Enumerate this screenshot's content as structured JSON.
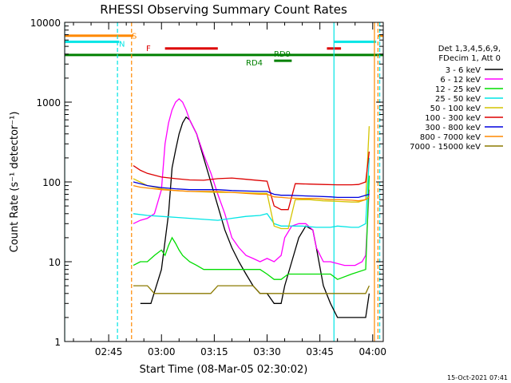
{
  "chart_data": {
    "type": "line",
    "title": "RHESSI Observing Summary Count Rates",
    "xlabel": "Start Time (08-Mar-05 02:30:02)",
    "ylabel": "Count Rate (s⁻¹ detector⁻¹)",
    "yscale": "log",
    "ylim": [
      1,
      10000
    ],
    "xlim_minutes": [
      2.5,
      93
    ],
    "x_ticks": [
      "02:45",
      "03:00",
      "03:15",
      "03:30",
      "03:45",
      "04:00"
    ],
    "x_tick_minutes": [
      15,
      30,
      45,
      60,
      75,
      90
    ],
    "y_ticks": [
      "1",
      "10",
      "100",
      "1000",
      "10000"
    ],
    "y_tick_values": [
      1,
      10,
      100,
      1000,
      10000
    ],
    "timestamp": "15-Oct-2021 07:41",
    "legend_header": [
      "Det 1,3,4,5,6,9,",
      "FDecim 1, Att 0"
    ],
    "legend": [
      {
        "label": "3 - 6 keV",
        "color": "#000000"
      },
      {
        "label": "6 - 12 keV",
        "color": "#ff00ff"
      },
      {
        "label": "12 - 25 keV",
        "color": "#00dd00"
      },
      {
        "label": "25 - 50 keV",
        "color": "#00e5e5"
      },
      {
        "label": "50 - 100 keV",
        "color": "#d4c400"
      },
      {
        "label": "100 - 300 keV",
        "color": "#dd0000"
      },
      {
        "label": "300 - 800 keV",
        "color": "#0000dd"
      },
      {
        "label": "800 - 7000 keV",
        "color": "#ff8800"
      },
      {
        "label": "7000 - 15000 keV",
        "color": "#8b7a00"
      }
    ],
    "flag_bars": [
      {
        "label": "S",
        "color": "#ff8800",
        "y": 6800,
        "segments": [
          [
            2.5,
            22
          ],
          [
            91.5,
            93
          ]
        ]
      },
      {
        "label": "N",
        "color": "#00e5e5",
        "y": 5700,
        "segments": [
          [
            2.5,
            18
          ],
          [
            79,
            91
          ]
        ]
      },
      {
        "label": "F",
        "color": "#dd0000",
        "y": 4700,
        "segments": [
          [
            31,
            46
          ],
          [
            77,
            81
          ]
        ]
      },
      {
        "label": "",
        "color": "#008000",
        "y": 3900,
        "segments": [
          [
            2.5,
            93
          ]
        ]
      },
      {
        "label": "RD9",
        "color": "#008000",
        "y": 3900,
        "segments": []
      },
      {
        "label": "RD4",
        "color": "#008000",
        "y": 3300,
        "segments": [
          [
            62,
            67
          ]
        ]
      }
    ],
    "vertical_markers": [
      {
        "minute": 2.5,
        "color": "#00e5e5",
        "style": "solid"
      },
      {
        "minute": 17.5,
        "color": "#00e5e5",
        "style": "dashed"
      },
      {
        "minute": 21.5,
        "color": "#ff8800",
        "style": "dashed"
      },
      {
        "minute": 79,
        "color": "#00e5e5",
        "style": "solid"
      },
      {
        "minute": 90.5,
        "color": "#ff8800",
        "style": "solid"
      },
      {
        "minute": 91.5,
        "color": "#ff8800",
        "style": "dashed"
      },
      {
        "minute": 92,
        "color": "#00e5e5",
        "style": "dashed"
      }
    ],
    "series": [
      {
        "color": "#000000",
        "points": [
          [
            24,
            3
          ],
          [
            27,
            3
          ],
          [
            30,
            8
          ],
          [
            32,
            40
          ],
          [
            33,
            150
          ],
          [
            34,
            250
          ],
          [
            35,
            400
          ],
          [
            36,
            550
          ],
          [
            37,
            650
          ],
          [
            38,
            600
          ],
          [
            40,
            400
          ],
          [
            42,
            200
          ],
          [
            44,
            100
          ],
          [
            46,
            50
          ],
          [
            48,
            25
          ],
          [
            50,
            15
          ],
          [
            52,
            10
          ],
          [
            54,
            7
          ],
          [
            56,
            5
          ],
          [
            58,
            4
          ],
          [
            60,
            4
          ],
          [
            62,
            3
          ],
          [
            64,
            3
          ],
          [
            65,
            5
          ],
          [
            67,
            10
          ],
          [
            69,
            20
          ],
          [
            71,
            28
          ],
          [
            73,
            25
          ],
          [
            74,
            15
          ],
          [
            76,
            5
          ],
          [
            78,
            3
          ],
          [
            80,
            2
          ],
          [
            84,
            2
          ],
          [
            88,
            2
          ],
          [
            89,
            4
          ]
        ]
      },
      {
        "color": "#ff00ff",
        "points": [
          [
            22,
            30
          ],
          [
            24,
            33
          ],
          [
            26,
            35
          ],
          [
            28,
            40
          ],
          [
            30,
            80
          ],
          [
            31,
            300
          ],
          [
            32,
            550
          ],
          [
            33,
            800
          ],
          [
            34,
            1000
          ],
          [
            35,
            1100
          ],
          [
            36,
            1000
          ],
          [
            37,
            800
          ],
          [
            38,
            600
          ],
          [
            40,
            400
          ],
          [
            42,
            220
          ],
          [
            44,
            130
          ],
          [
            46,
            70
          ],
          [
            48,
            40
          ],
          [
            50,
            20
          ],
          [
            52,
            15
          ],
          [
            54,
            12
          ],
          [
            56,
            11
          ],
          [
            58,
            10
          ],
          [
            60,
            11
          ],
          [
            62,
            10
          ],
          [
            64,
            12
          ],
          [
            65,
            20
          ],
          [
            67,
            28
          ],
          [
            69,
            30
          ],
          [
            71,
            30
          ],
          [
            73,
            25
          ],
          [
            74,
            15
          ],
          [
            76,
            10
          ],
          [
            78,
            10
          ],
          [
            82,
            9
          ],
          [
            85,
            9
          ],
          [
            87,
            10
          ],
          [
            88,
            12
          ],
          [
            89,
            80
          ]
        ]
      },
      {
        "color": "#00dd00",
        "points": [
          [
            22,
            9
          ],
          [
            24,
            10
          ],
          [
            26,
            10
          ],
          [
            28,
            12
          ],
          [
            30,
            14
          ],
          [
            31,
            12
          ],
          [
            32,
            16
          ],
          [
            33,
            20
          ],
          [
            34,
            17
          ],
          [
            35,
            14
          ],
          [
            36,
            12
          ],
          [
            38,
            10
          ],
          [
            40,
            9
          ],
          [
            42,
            8
          ],
          [
            44,
            8
          ],
          [
            46,
            8
          ],
          [
            48,
            8
          ],
          [
            50,
            8
          ],
          [
            52,
            8
          ],
          [
            54,
            8
          ],
          [
            56,
            8
          ],
          [
            58,
            8
          ],
          [
            60,
            7
          ],
          [
            62,
            6
          ],
          [
            64,
            6
          ],
          [
            66,
            7
          ],
          [
            68,
            7
          ],
          [
            70,
            7
          ],
          [
            72,
            7
          ],
          [
            74,
            7
          ],
          [
            76,
            7
          ],
          [
            78,
            7
          ],
          [
            80,
            6
          ],
          [
            84,
            7
          ],
          [
            88,
            8
          ],
          [
            89,
            120
          ]
        ]
      },
      {
        "color": "#00e5e5",
        "points": [
          [
            22,
            40
          ],
          [
            26,
            38
          ],
          [
            30,
            37
          ],
          [
            34,
            36
          ],
          [
            38,
            35
          ],
          [
            42,
            34
          ],
          [
            46,
            33
          ],
          [
            50,
            35
          ],
          [
            54,
            37
          ],
          [
            58,
            38
          ],
          [
            60,
            40
          ],
          [
            62,
            30
          ],
          [
            64,
            28
          ],
          [
            66,
            28
          ],
          [
            70,
            28
          ],
          [
            74,
            27
          ],
          [
            78,
            27
          ],
          [
            80,
            28
          ],
          [
            84,
            27
          ],
          [
            86,
            27
          ],
          [
            88,
            30
          ],
          [
            89,
            200
          ]
        ]
      },
      {
        "color": "#d4c400",
        "points": [
          [
            22,
            110
          ],
          [
            26,
            90
          ],
          [
            30,
            82
          ],
          [
            34,
            78
          ],
          [
            38,
            76
          ],
          [
            42,
            75
          ],
          [
            46,
            74
          ],
          [
            50,
            74
          ],
          [
            54,
            73
          ],
          [
            58,
            72
          ],
          [
            60,
            72
          ],
          [
            62,
            28
          ],
          [
            64,
            26
          ],
          [
            66,
            26
          ],
          [
            68,
            60
          ],
          [
            72,
            60
          ],
          [
            76,
            58
          ],
          [
            80,
            57
          ],
          [
            84,
            56
          ],
          [
            86,
            56
          ],
          [
            88,
            60
          ],
          [
            89,
            500
          ]
        ]
      },
      {
        "color": "#dd0000",
        "points": [
          [
            22,
            160
          ],
          [
            24,
            140
          ],
          [
            26,
            128
          ],
          [
            30,
            115
          ],
          [
            34,
            110
          ],
          [
            38,
            106
          ],
          [
            42,
            105
          ],
          [
            46,
            110
          ],
          [
            50,
            112
          ],
          [
            54,
            108
          ],
          [
            58,
            104
          ],
          [
            60,
            102
          ],
          [
            62,
            50
          ],
          [
            64,
            45
          ],
          [
            66,
            45
          ],
          [
            68,
            95
          ],
          [
            72,
            94
          ],
          [
            76,
            93
          ],
          [
            80,
            92
          ],
          [
            84,
            92
          ],
          [
            86,
            93
          ],
          [
            88,
            100
          ],
          [
            89,
            240
          ]
        ]
      },
      {
        "color": "#0000dd",
        "points": [
          [
            22,
            100
          ],
          [
            24,
            95
          ],
          [
            26,
            90
          ],
          [
            30,
            85
          ],
          [
            34,
            82
          ],
          [
            38,
            80
          ],
          [
            42,
            80
          ],
          [
            46,
            80
          ],
          [
            50,
            78
          ],
          [
            54,
            77
          ],
          [
            58,
            76
          ],
          [
            60,
            76
          ],
          [
            62,
            70
          ],
          [
            64,
            68
          ],
          [
            66,
            68
          ],
          [
            70,
            67
          ],
          [
            74,
            66
          ],
          [
            78,
            65
          ],
          [
            80,
            64
          ],
          [
            84,
            64
          ],
          [
            86,
            64
          ],
          [
            88,
            68
          ],
          [
            89,
            70
          ]
        ]
      },
      {
        "color": "#ff8800",
        "points": [
          [
            22,
            90
          ],
          [
            24,
            86
          ],
          [
            26,
            84
          ],
          [
            30,
            80
          ],
          [
            34,
            78
          ],
          [
            38,
            76
          ],
          [
            42,
            76
          ],
          [
            46,
            76
          ],
          [
            50,
            74
          ],
          [
            54,
            72
          ],
          [
            58,
            70
          ],
          [
            60,
            70
          ],
          [
            62,
            65
          ],
          [
            64,
            64
          ],
          [
            66,
            63
          ],
          [
            70,
            62
          ],
          [
            74,
            62
          ],
          [
            78,
            60
          ],
          [
            80,
            60
          ],
          [
            84,
            59
          ],
          [
            86,
            58
          ],
          [
            88,
            60
          ],
          [
            89,
            65
          ]
        ]
      },
      {
        "color": "#8b7a00",
        "points": [
          [
            22,
            5
          ],
          [
            24,
            5
          ],
          [
            26,
            5
          ],
          [
            28,
            4
          ],
          [
            30,
            4
          ],
          [
            32,
            4
          ],
          [
            34,
            4
          ],
          [
            36,
            4
          ],
          [
            38,
            4
          ],
          [
            40,
            4
          ],
          [
            42,
            4
          ],
          [
            44,
            4
          ],
          [
            46,
            5
          ],
          [
            48,
            5
          ],
          [
            50,
            5
          ],
          [
            52,
            5
          ],
          [
            54,
            5
          ],
          [
            56,
            5
          ],
          [
            58,
            4
          ],
          [
            60,
            4
          ],
          [
            62,
            4
          ],
          [
            64,
            4
          ],
          [
            66,
            4
          ],
          [
            68,
            4
          ],
          [
            70,
            4
          ],
          [
            72,
            4
          ],
          [
            74,
            4
          ],
          [
            76,
            4
          ],
          [
            78,
            4
          ],
          [
            80,
            4
          ],
          [
            82,
            4
          ],
          [
            84,
            4
          ],
          [
            86,
            4
          ],
          [
            88,
            4
          ],
          [
            89,
            5
          ]
        ]
      }
    ]
  }
}
